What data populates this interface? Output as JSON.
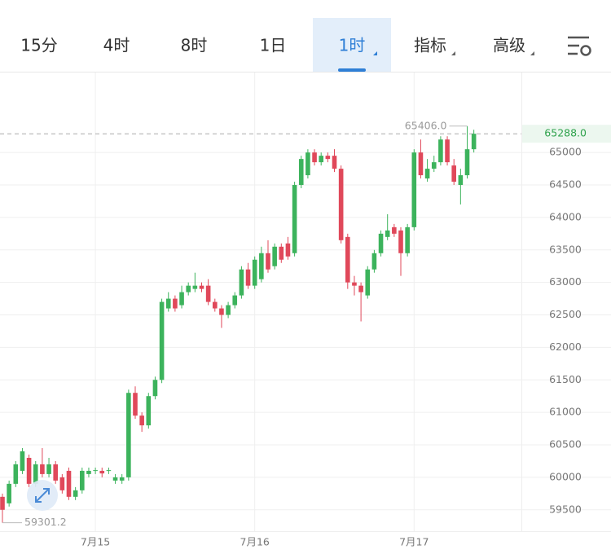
{
  "toolbar": {
    "tabs": [
      "15分",
      "4时",
      "8时",
      "1日",
      "1时",
      "指标",
      "高级"
    ],
    "active": 4
  },
  "chart_data": {
    "type": "candlestick",
    "categories": [
      null,
      null,
      null,
      null,
      null,
      null,
      null,
      null,
      null,
      null,
      null,
      null,
      null,
      null,
      "7月15",
      null,
      null,
      null,
      null,
      null,
      null,
      null,
      null,
      null,
      null,
      null,
      null,
      null,
      null,
      null,
      null,
      null,
      null,
      null,
      null,
      null,
      null,
      null,
      "7月16",
      null,
      null,
      null,
      null,
      null,
      null,
      null,
      null,
      null,
      null,
      null,
      null,
      null,
      null,
      null,
      null,
      null,
      null,
      null,
      null,
      null,
      null,
      null,
      "7月17",
      null,
      null,
      null,
      null,
      null,
      null,
      null,
      null,
      null
    ],
    "open": [
      59700,
      59600,
      59900,
      60100,
      60300,
      59900,
      60200,
      60050,
      60200,
      60000,
      60100,
      59700,
      59800,
      60050,
      60100,
      60100,
      60100,
      59950,
      59950,
      60000,
      61300,
      60950,
      60800,
      61250,
      61500,
      62600,
      62750,
      62650,
      62850,
      62900,
      62950,
      62950,
      62700,
      62600,
      62500,
      62650,
      62800,
      63200,
      62950,
      63050,
      63450,
      63250,
      63550,
      63600,
      63450,
      64500,
      64650,
      65000,
      64850,
      64950,
      64950,
      64750,
      63700,
      63000,
      62950,
      62800,
      63200,
      63450,
      63700,
      63850,
      63800,
      63450,
      63850,
      65000,
      64600,
      64750,
      64850,
      65200,
      64800,
      64500,
      64650,
      65050
    ],
    "high": [
      59750,
      59950,
      60250,
      60450,
      60350,
      60250,
      60450,
      60300,
      60250,
      60050,
      60150,
      59850,
      60150,
      60150,
      60150,
      60150,
      60150,
      60050,
      60050,
      61350,
      61400,
      61000,
      61300,
      61550,
      62750,
      62850,
      62800,
      62950,
      63000,
      63150,
      63000,
      63050,
      62750,
      62650,
      62700,
      62850,
      63250,
      63300,
      63400,
      63550,
      63650,
      63600,
      63600,
      63700,
      64550,
      64950,
      65050,
      65050,
      65000,
      65000,
      65050,
      64800,
      63750,
      63100,
      63000,
      63250,
      63500,
      63800,
      64050,
      63900,
      63850,
      63900,
      65050,
      65200,
      64900,
      64950,
      65250,
      65250,
      64900,
      64750,
      65406,
      65350
    ],
    "low": [
      59301.2,
      59550,
      59850,
      60050,
      59850,
      59850,
      60000,
      60000,
      59900,
      59750,
      59650,
      59650,
      59750,
      60000,
      60050,
      60000,
      60050,
      59900,
      59900,
      59950,
      60900,
      60700,
      60750,
      61200,
      61450,
      62550,
      62550,
      62600,
      62800,
      62850,
      62850,
      62650,
      62550,
      62300,
      62450,
      62600,
      62750,
      62900,
      62900,
      63000,
      63150,
      63200,
      63300,
      63350,
      63400,
      64450,
      64600,
      64800,
      64800,
      64850,
      64700,
      63600,
      62900,
      62800,
      62400,
      62750,
      63150,
      63400,
      63650,
      63700,
      63100,
      63400,
      63800,
      64600,
      64550,
      64700,
      64800,
      64800,
      64500,
      64200,
      64600,
      65000
    ],
    "close": [
      59500,
      59900,
      60200,
      60400,
      59900,
      60200,
      60050,
      60200,
      59950,
      59800,
      59700,
      59800,
      60100,
      60100,
      60110,
      60060,
      60110,
      60000,
      60000,
      61300,
      60950,
      60800,
      61250,
      61500,
      62700,
      62750,
      62600,
      62850,
      62950,
      62950,
      62900,
      62700,
      62600,
      62500,
      62650,
      62800,
      63200,
      62950,
      63350,
      63450,
      63200,
      63550,
      63350,
      63400,
      64500,
      64900,
      65000,
      64850,
      64950,
      64900,
      64750,
      63650,
      63000,
      62950,
      62850,
      63200,
      63450,
      63750,
      63800,
      63750,
      63450,
      63850,
      65000,
      64650,
      64750,
      64850,
      65200,
      64850,
      64550,
      64650,
      65050,
      65288
    ],
    "up_color": "#3cb35c",
    "down_color": "#e0485a",
    "ylim": [
      59171,
      66231
    ],
    "yticks": [
      59500,
      60000,
      60500,
      61000,
      61500,
      62000,
      62500,
      63000,
      63500,
      64000,
      64500,
      65000
    ],
    "grid": true,
    "last_price": {
      "value": 65288,
      "label": "65288.0"
    },
    "max_marker": {
      "value": 65406,
      "label": "65406.0"
    },
    "min_marker": {
      "value": 59301.2,
      "label": "59301.2"
    }
  }
}
